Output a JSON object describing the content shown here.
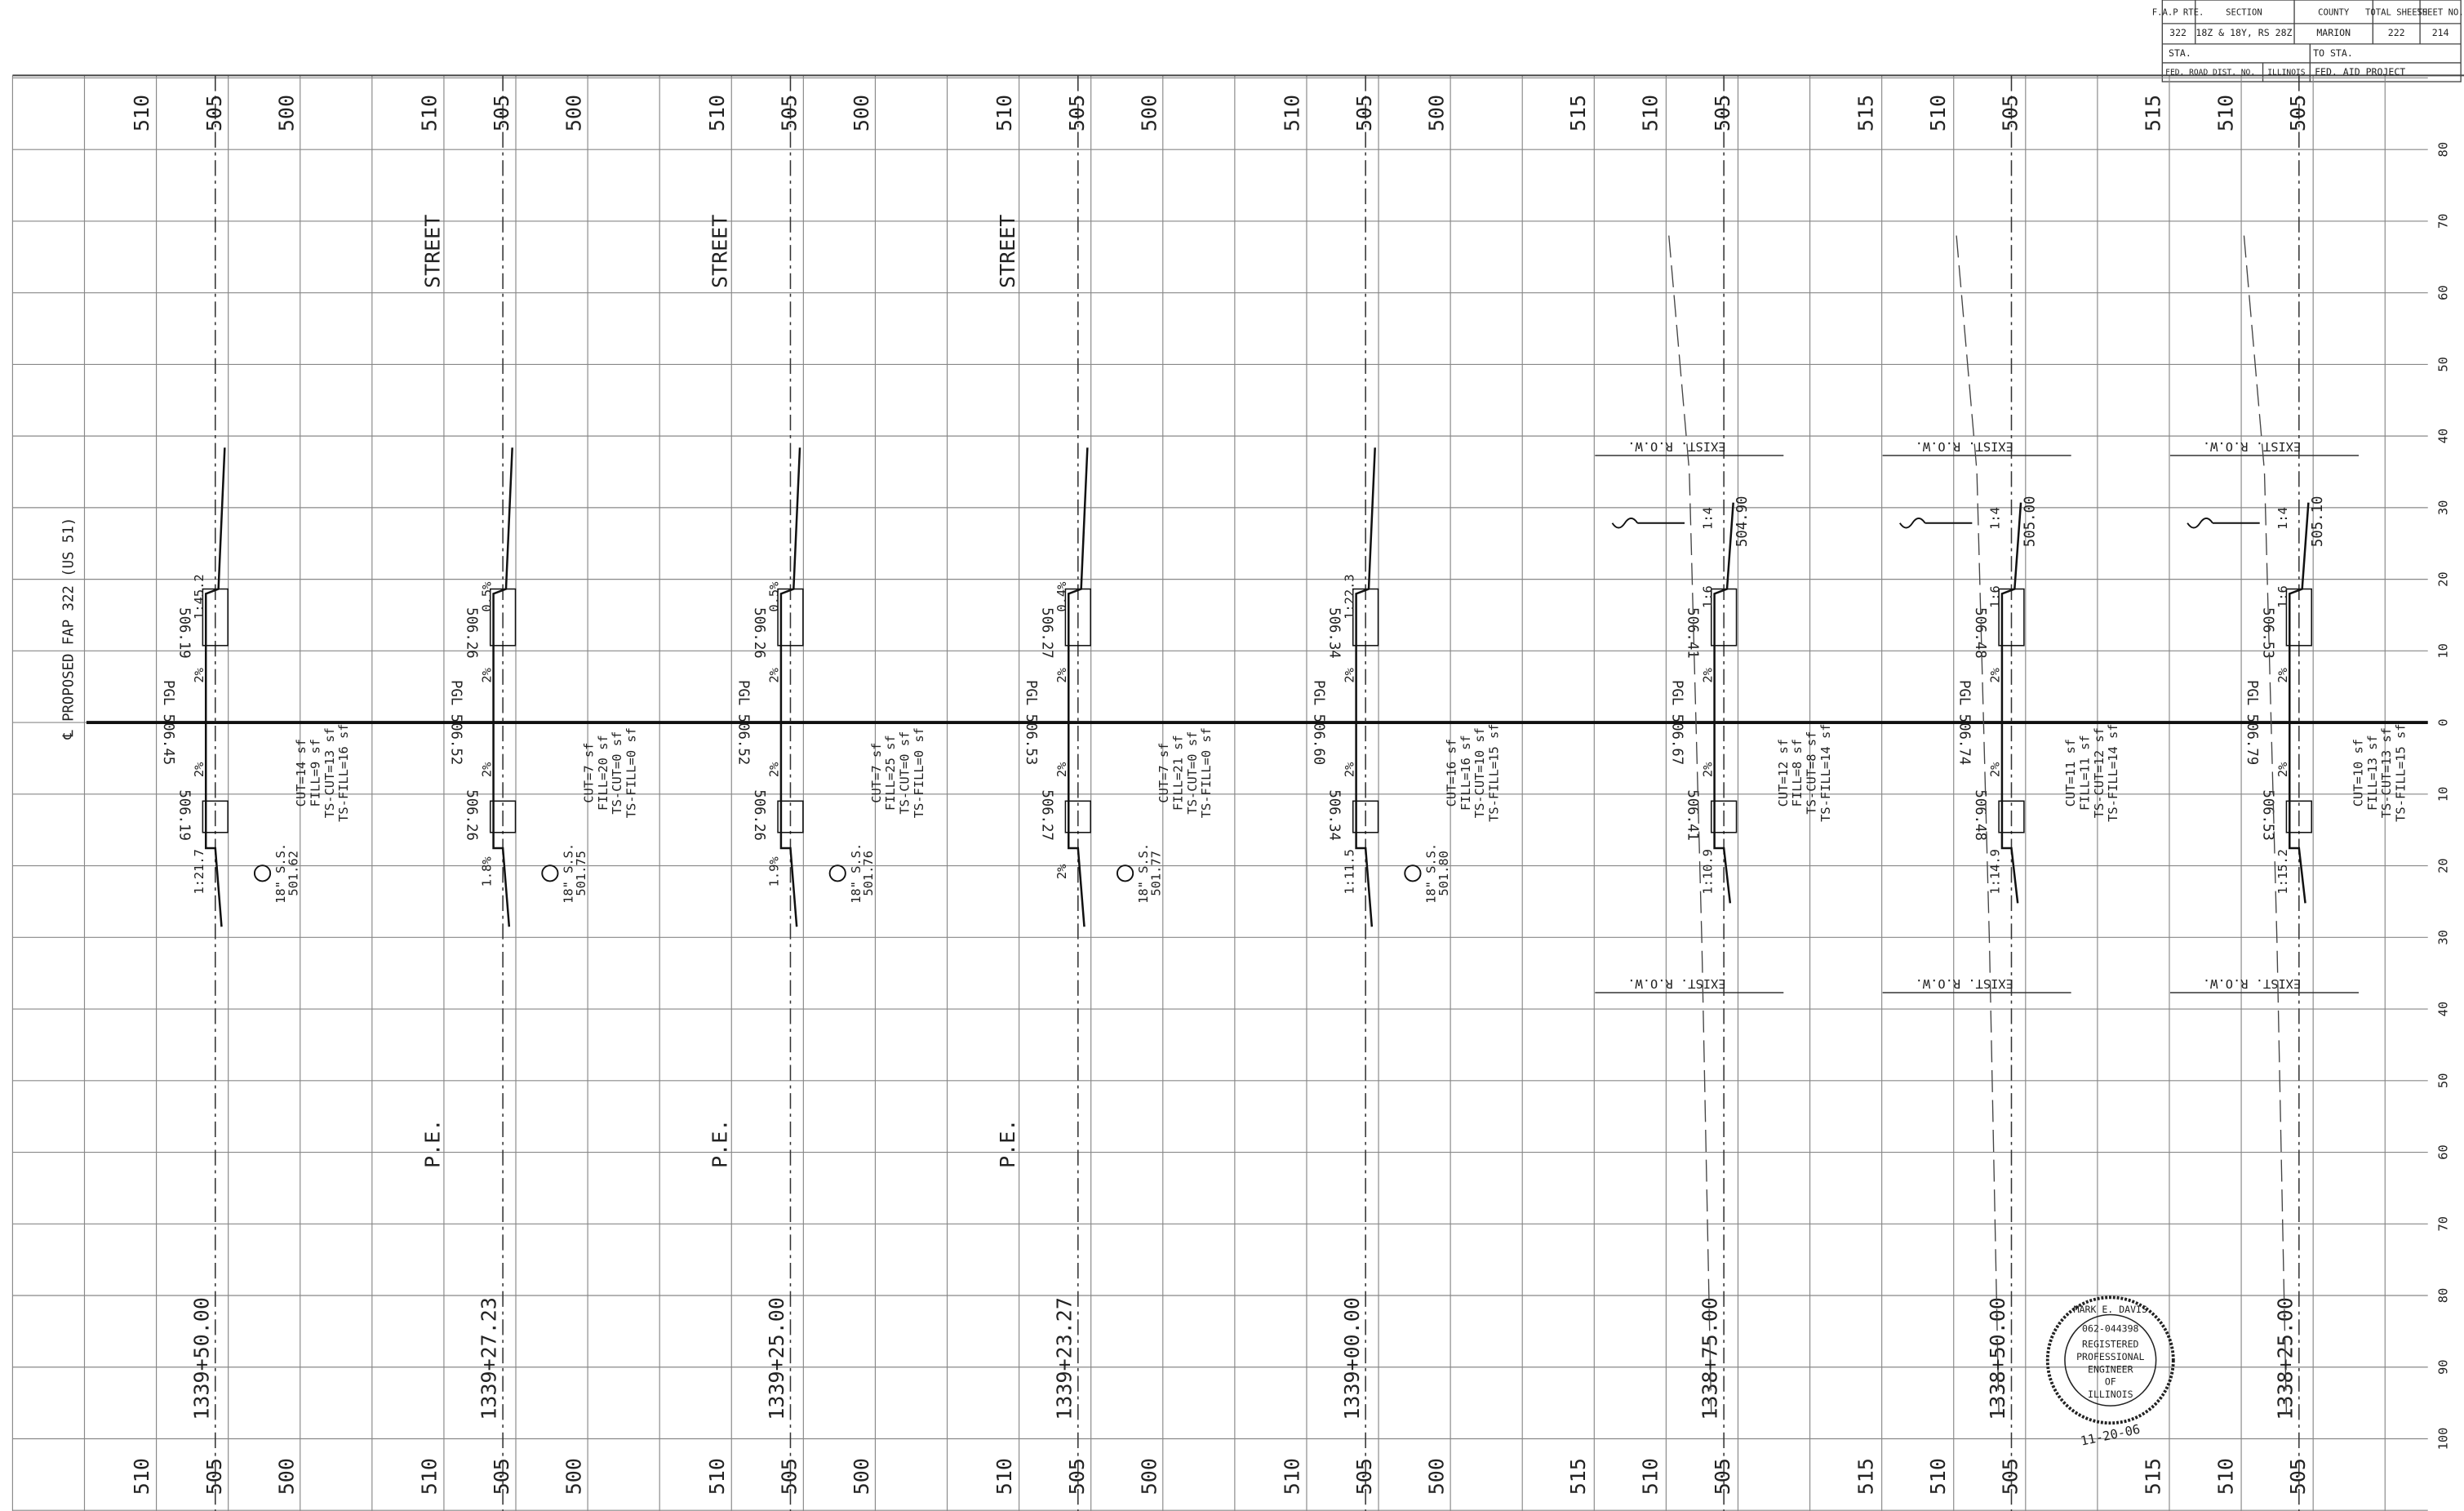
{
  "title_block": {
    "headers": [
      "F.A.P RTE.",
      "SECTION",
      "COUNTY",
      "TOTAL SHEETS",
      "SHEET NO."
    ],
    "values": [
      "322",
      "18Z & 18Y, RS 28Z",
      "MARION",
      "222",
      "214"
    ],
    "sta": "STA.",
    "to_sta": "TO STA.",
    "fed_road_dist": "FED. ROAD DIST. NO.",
    "state": "ILLINOIS",
    "fed_aid": "FED. AID PROJECT"
  },
  "centerline_label": "℄ PROPOSED FAP 322 (US 51)",
  "offsets": [
    80,
    70,
    60,
    50,
    40,
    30,
    20,
    10,
    0,
    10,
    20,
    30,
    40,
    50,
    60,
    70,
    80,
    90,
    100
  ],
  "sections": [
    {
      "station": "1339+50.00",
      "elevations": [
        510,
        505,
        500
      ],
      "pgl": "PGL 506.45",
      "edge_upper": "506.19",
      "edge_lower": "506.19",
      "slopes_upper": [
        "1:45.2",
        "2%"
      ],
      "slopes_lower": [
        "2%",
        "1:21.7"
      ],
      "quantities": [
        "CUT=14 sf",
        "FILL=9 sf",
        "TS-CUT=13 sf",
        "TS-FILL=16 sf"
      ],
      "culvert": [
        "18\" S.S.",
        "501.62"
      ]
    },
    {
      "station": "1339+27.23",
      "elevations": [
        510,
        505,
        500
      ],
      "pgl": "PGL 506.52",
      "edge_upper": "506.26",
      "edge_lower": "506.26",
      "slopes_upper": [
        "0.5%",
        "2%"
      ],
      "slopes_lower": [
        "2%",
        "1.8%"
      ],
      "quantities": [
        "CUT=7 sf",
        "FILL=20 sf",
        "TS-CUT=0 sf",
        "TS-FILL=0 sf"
      ],
      "culvert": [
        "18\" S.S.",
        "501.75"
      ],
      "street": "STREET",
      "pe": "P.E."
    },
    {
      "station": "1339+25.00",
      "elevations": [
        510,
        505,
        500
      ],
      "pgl": "PGL 506.52",
      "edge_upper": "506.26",
      "edge_lower": "506.26",
      "slopes_upper": [
        "0.5%",
        "2%"
      ],
      "slopes_lower": [
        "2%",
        "1.9%"
      ],
      "quantities": [
        "CUT=7 sf",
        "FILL=25 sf",
        "TS-CUT=0 sf",
        "TS-FILL=0 sf"
      ],
      "culvert": [
        "18\" S.S.",
        "501.76"
      ],
      "street": "STREET",
      "pe": "P.E."
    },
    {
      "station": "1339+23.27",
      "elevations": [
        510,
        505,
        500
      ],
      "pgl": "PGL 506.53",
      "edge_upper": "506.27",
      "edge_lower": "506.27",
      "slopes_upper": [
        "0.4%",
        "2%"
      ],
      "slopes_lower": [
        "2%",
        "2%"
      ],
      "quantities": [
        "CUT=7 sf",
        "FILL=21 sf",
        "TS-CUT=0 sf",
        "TS-FILL=0 sf"
      ],
      "culvert": [
        "18\" S.S.",
        "501.77"
      ],
      "street": "STREET",
      "pe": "P.E."
    },
    {
      "station": "1339+00.00",
      "elevations": [
        510,
        505,
        500
      ],
      "pgl": "PGL 506.60",
      "edge_upper": "506.34",
      "edge_lower": "506.34",
      "slopes_upper": [
        "1:22.3",
        "2%"
      ],
      "slopes_lower": [
        "2%",
        "1:11.5"
      ],
      "quantities": [
        "CUT=16 sf",
        "FILL=16 sf",
        "TS-CUT=10 sf",
        "TS-FILL=15 sf"
      ],
      "culvert": [
        "18\" S.S.",
        "501.80"
      ]
    },
    {
      "station": "1338+75.00",
      "elevations": [
        515,
        510,
        505
      ],
      "pgl": "PGL 506.67",
      "edge_upper": "506.41",
      "edge_lower": "506.41",
      "slopes_upper": [
        "1:4",
        "1:6",
        "2%"
      ],
      "slopes_lower": [
        "2%",
        "1:10.9"
      ],
      "quantities": [
        "CUT=12 sf",
        "FILL=8 sf",
        "TS-CUT=8 sf",
        "TS-FILL=14 sf"
      ],
      "top_elev": "504.90",
      "row": "EXIST. R.O.W."
    },
    {
      "station": "1338+50.00",
      "elevations": [
        515,
        510,
        505
      ],
      "pgl": "PGL 506.74",
      "edge_upper": "506.48",
      "edge_lower": "506.48",
      "slopes_upper": [
        "1:4",
        "1:6",
        "2%"
      ],
      "slopes_lower": [
        "2%",
        "1:14.9"
      ],
      "quantities": [
        "CUT=11 sf",
        "FILL=11 sf",
        "TS-CUT=12 sf",
        "TS-FILL=14 sf"
      ],
      "top_elev": "505.00",
      "row": "EXIST. R.O.W."
    },
    {
      "station": "1338+25.00",
      "elevations": [
        515,
        510,
        505
      ],
      "pgl": "PGL 506.79",
      "edge_upper": "506.53",
      "edge_lower": "506.53",
      "slopes_upper": [
        "1:4",
        "1:6",
        "2%"
      ],
      "slopes_lower": [
        "2%",
        "1:15.2"
      ],
      "quantities": [
        "CUT=10 sf",
        "FILL=13 sf",
        "TS-CUT=13 sf",
        "TS-FILL=15 sf"
      ],
      "top_elev": "505.10",
      "row": "EXIST. R.O.W."
    }
  ],
  "stamp": {
    "name": "MARK E. DAVIS",
    "number": "062-044398",
    "lines": [
      "REGISTERED",
      "PROFESSIONAL",
      "ENGINEER",
      "OF",
      "ILLINOIS"
    ],
    "date": "11-20-06"
  }
}
